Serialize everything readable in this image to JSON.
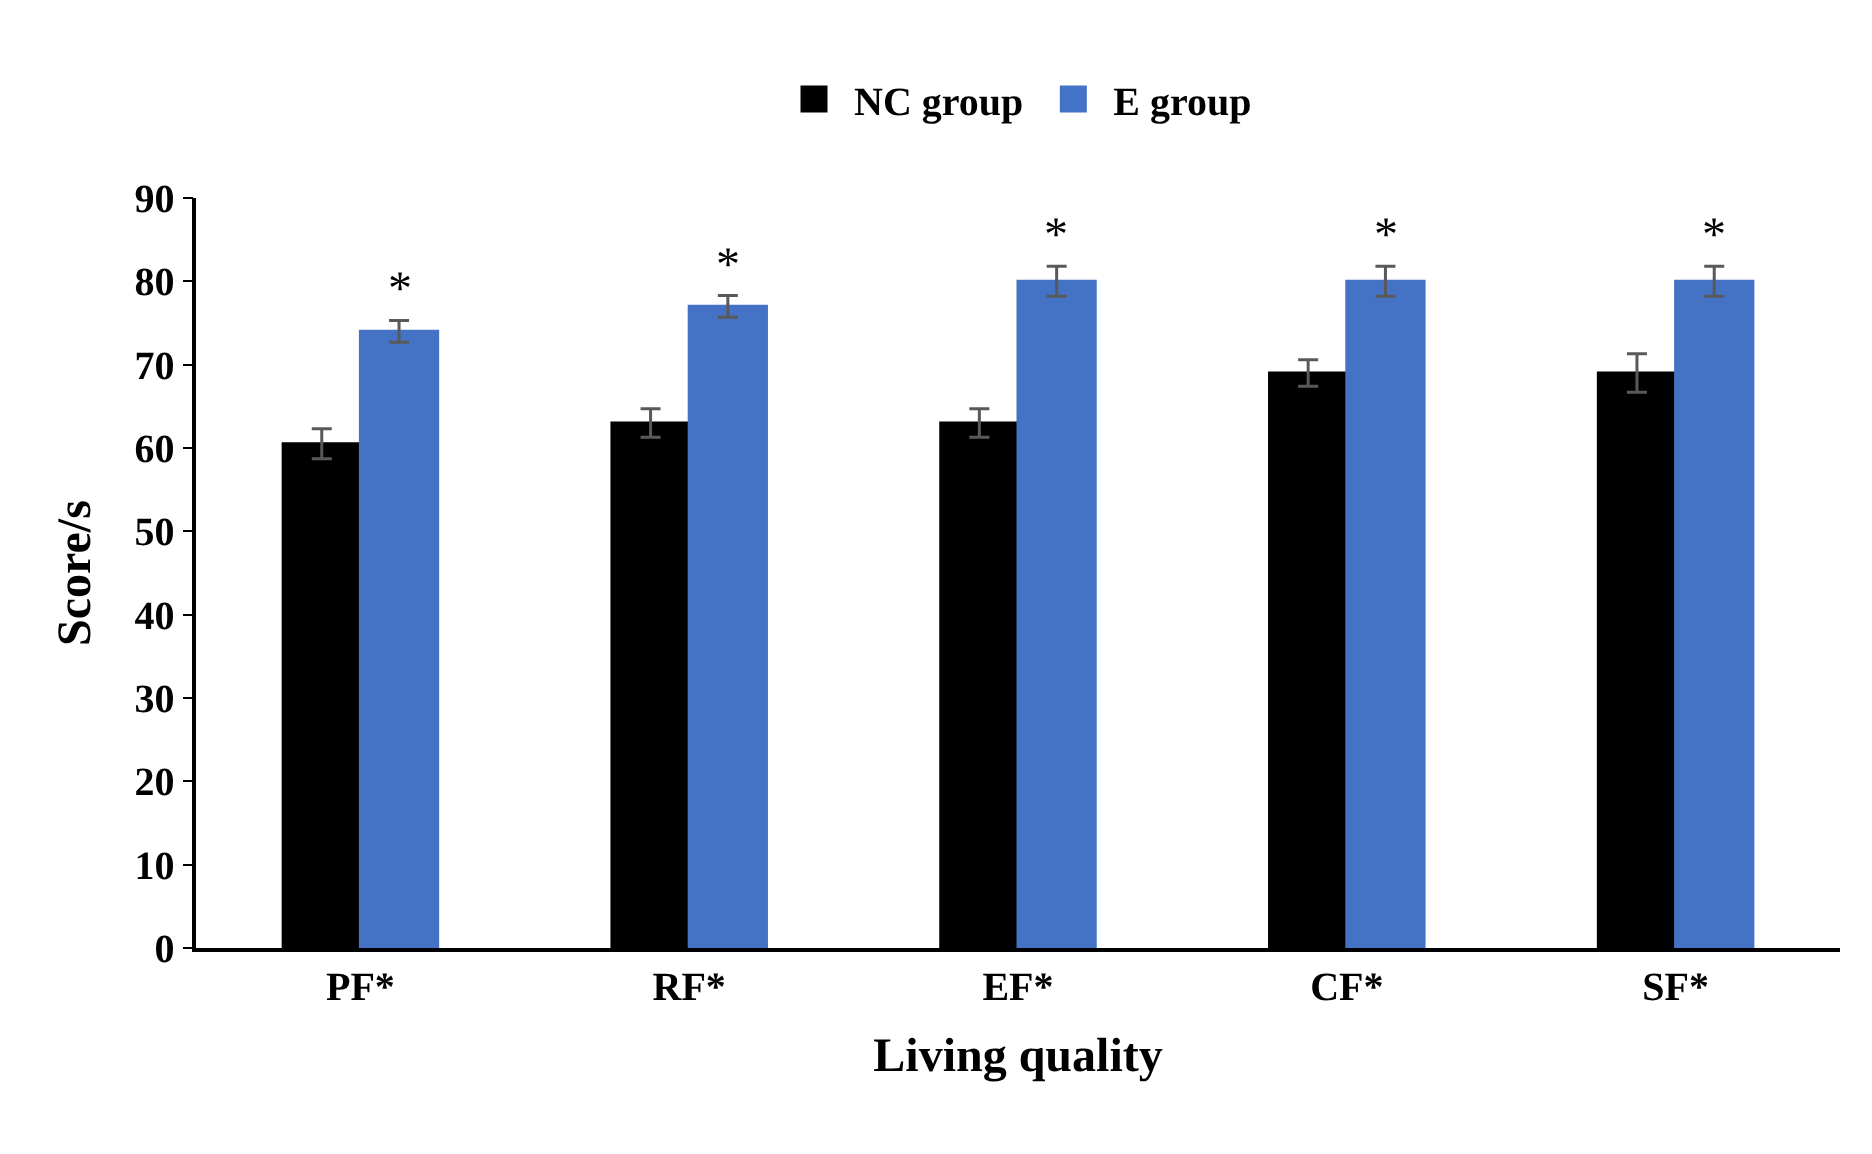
{
  "chart_data": {
    "type": "bar",
    "xlabel": "Living quality",
    "ylabel": "Score/s",
    "categories": [
      "PF*",
      "RF*",
      "EF*",
      "CF*",
      "SF*"
    ],
    "series": [
      {
        "name": "NC group",
        "color": "#000000",
        "values": [
          60.5,
          63,
          63,
          69,
          69
        ],
        "errors": [
          1.8,
          1.7,
          1.7,
          1.6,
          2.3
        ]
      },
      {
        "name": "E group",
        "color": "#4472c4",
        "values": [
          74,
          77,
          80,
          80,
          80
        ],
        "errors": [
          1.3,
          1.3,
          1.8,
          1.8,
          1.8
        ]
      }
    ],
    "annotations": [
      "*",
      "*",
      "*",
      "*",
      "*"
    ],
    "ylim": [
      0,
      90
    ],
    "yticks": [
      0,
      10,
      20,
      30,
      40,
      50,
      60,
      70,
      80,
      90
    ],
    "legend": "top"
  }
}
